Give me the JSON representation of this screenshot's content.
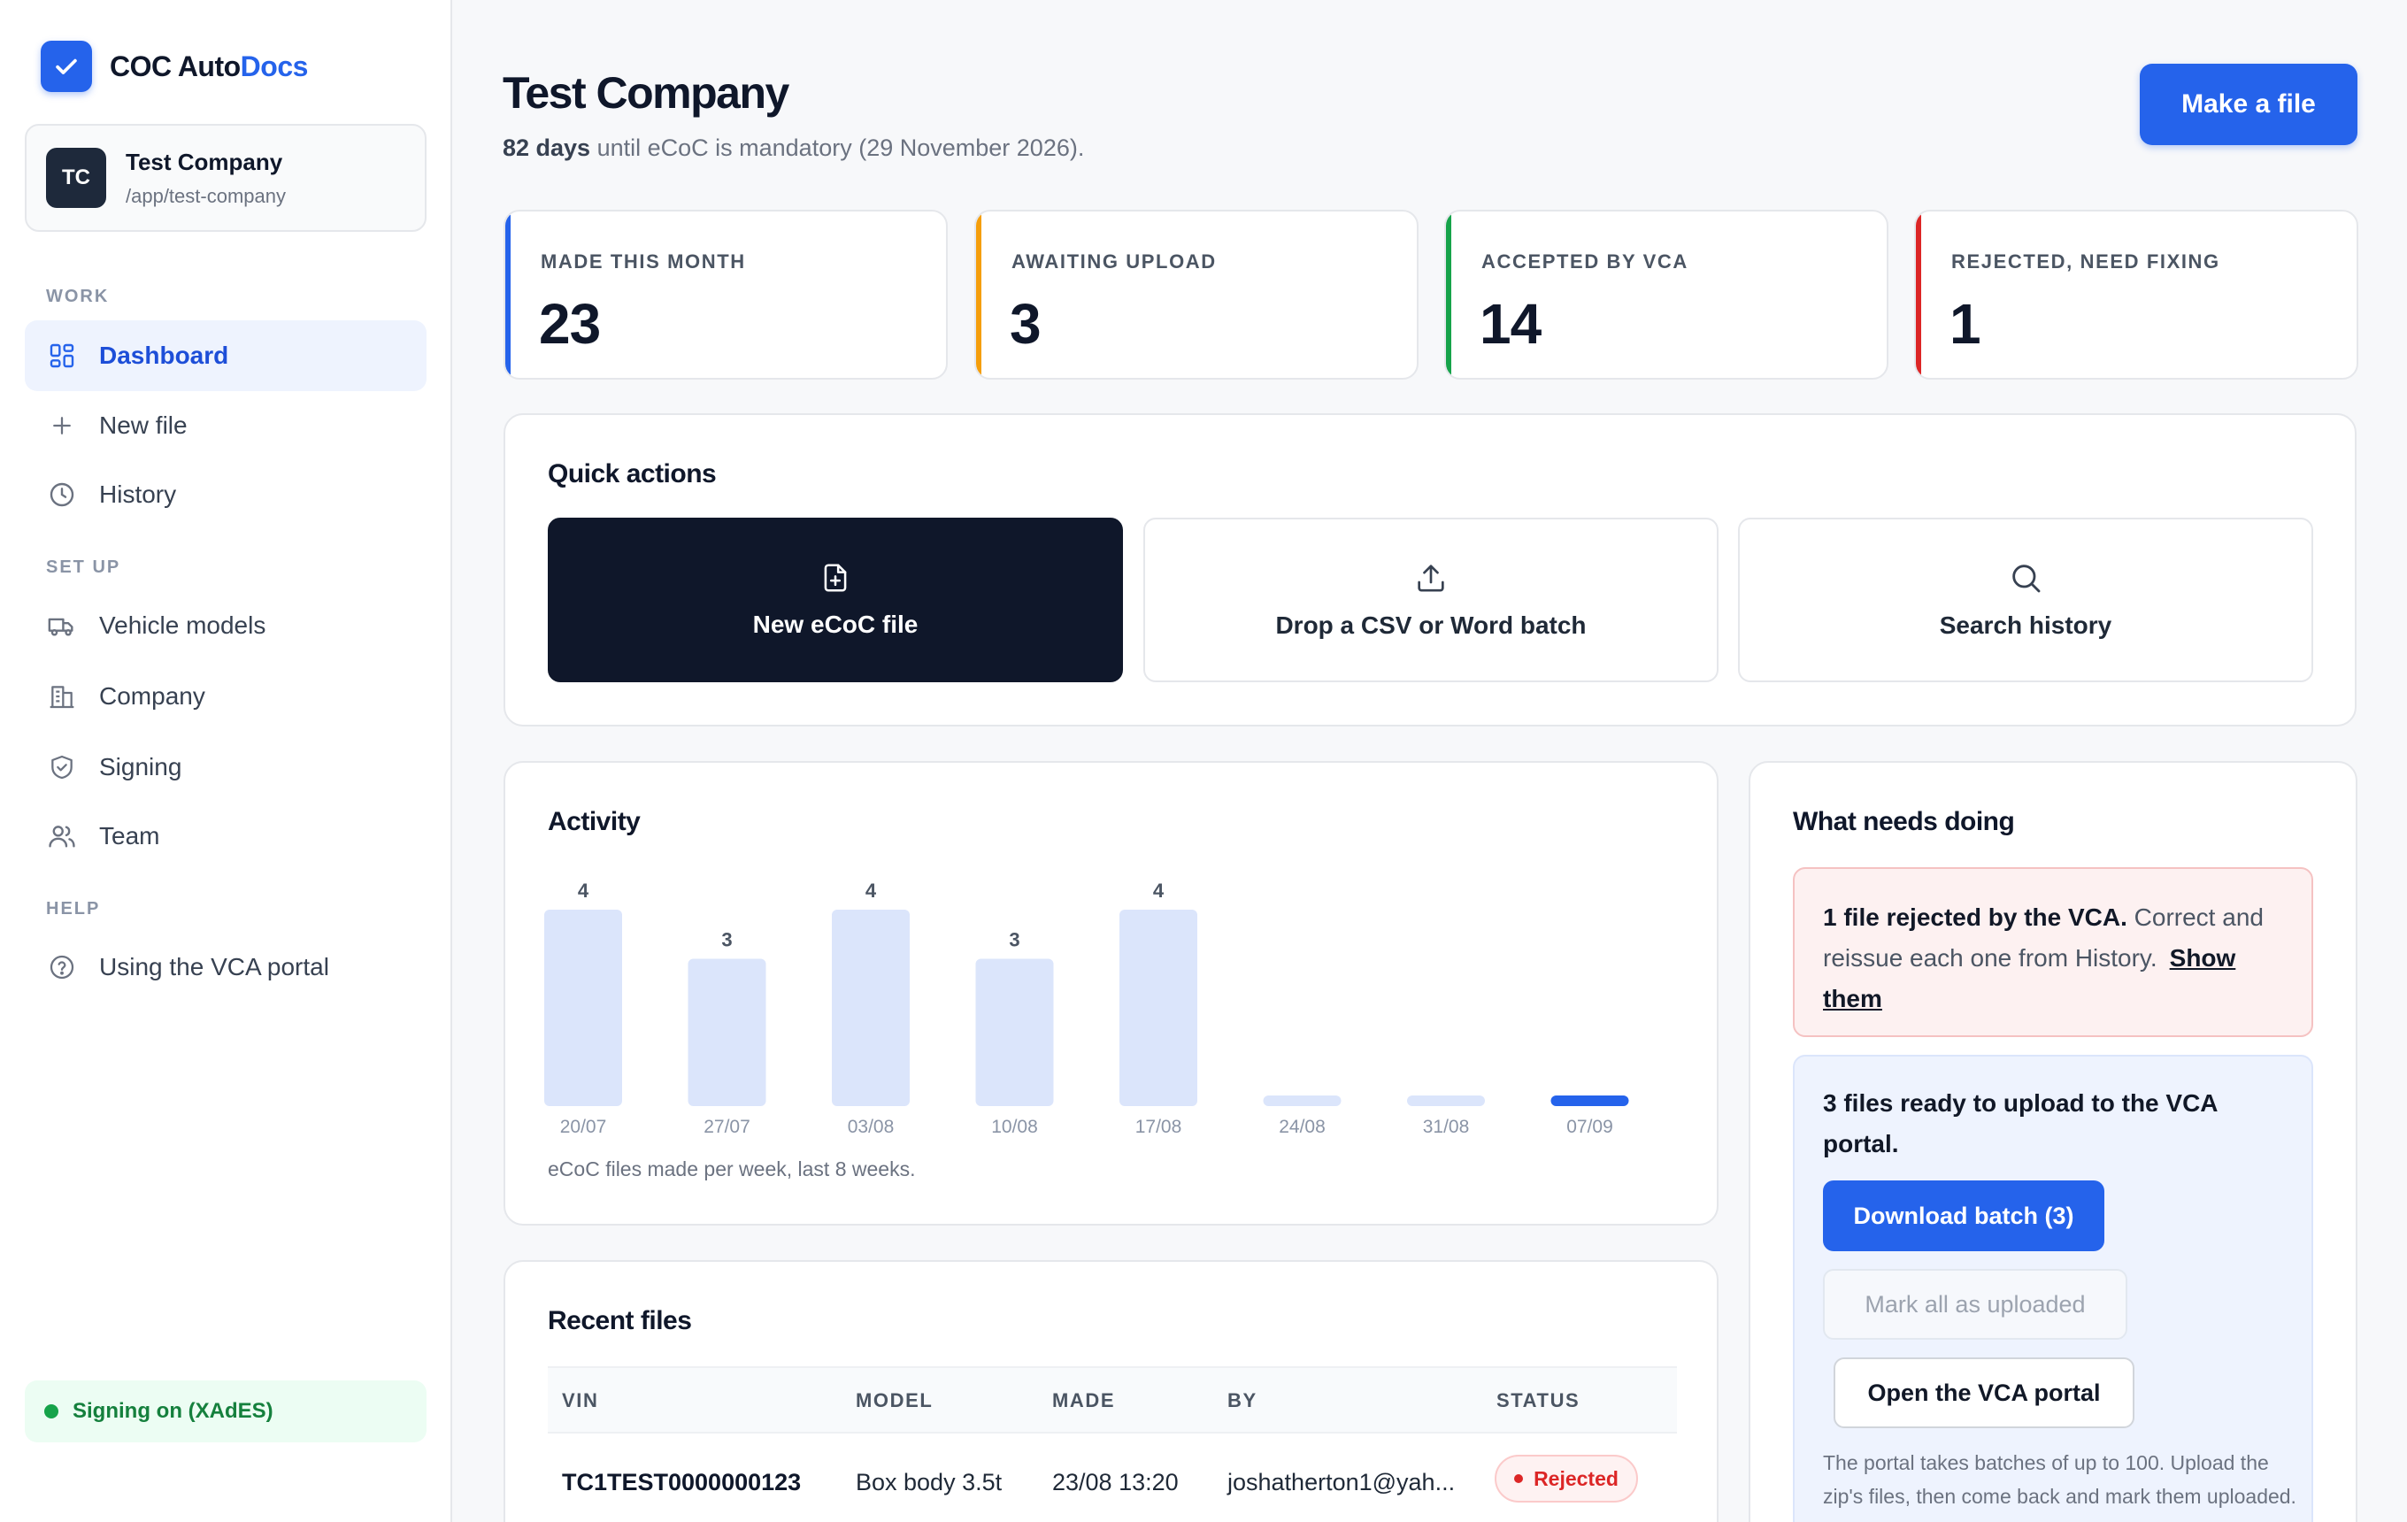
{
  "brand": {
    "name_main": "COC Auto",
    "name_accent": "Docs"
  },
  "company": {
    "initials": "TC",
    "name": "Test Company",
    "path": "/app/test-company"
  },
  "sidebar": {
    "sections": {
      "work": "WORK",
      "setup": "SET UP",
      "help": "HELP"
    },
    "items": {
      "dashboard": "Dashboard",
      "new_file": "New file",
      "history": "History",
      "vehicle_models": "Vehicle models",
      "company": "Company",
      "signing": "Signing",
      "team": "Team",
      "vca_portal": "Using the VCA portal"
    },
    "signing_status": "Signing on (XAdES)"
  },
  "header": {
    "title": "Test Company",
    "days_count": "82 days",
    "days_text": " until eCoC is mandatory (29 November 2026).",
    "make_file_label": "Make a file"
  },
  "stats": [
    {
      "label": "MADE THIS MONTH",
      "value": "23",
      "color": "#2563eb"
    },
    {
      "label": "AWAITING UPLOAD",
      "value": "3",
      "color": "#f59e0b"
    },
    {
      "label": "ACCEPTED BY VCA",
      "value": "14",
      "color": "#16a34a"
    },
    {
      "label": "REJECTED, NEED FIXING",
      "value": "1",
      "color": "#dc2626"
    }
  ],
  "quick_actions": {
    "title": "Quick actions",
    "new_ecoc": "New eCoC file",
    "drop_batch": "Drop a CSV or Word batch",
    "search_history": "Search history"
  },
  "activity": {
    "title": "Activity",
    "note": "eCoC files made per week, last 8 weeks."
  },
  "chart_data": {
    "type": "bar",
    "categories": [
      "20/07",
      "27/07",
      "03/08",
      "10/08",
      "17/08",
      "24/08",
      "31/08",
      "07/09"
    ],
    "values": [
      4,
      3,
      4,
      3,
      4,
      0,
      0,
      0
    ],
    "data_labels": [
      "4",
      "3",
      "4",
      "3",
      "4",
      "",
      "",
      ""
    ],
    "highlight_index": 7,
    "bar_color": "#dbe5fb",
    "highlight_color": "#2563eb",
    "ylim": [
      0,
      4
    ],
    "grid": false
  },
  "needs_doing": {
    "title": "What needs doing",
    "rejected_bold": "1 file rejected by the VCA.",
    "rejected_text": " Correct and reissue each one from History.",
    "rejected_link": "Show them",
    "ready_title": "3 files ready to upload to the VCA portal.",
    "download_label": "Download batch (3)",
    "mark_label": "Mark all as uploaded",
    "open_portal_label": "Open the VCA portal",
    "portal_note": "The portal takes batches of up to 100. Upload the zip's files, then come back and mark them uploaded."
  },
  "recent_files": {
    "title": "Recent files",
    "columns": {
      "vin": "VIN",
      "model": "MODEL",
      "made": "MADE",
      "by": "BY",
      "status": "STATUS"
    },
    "rows": [
      {
        "vin": "TC1TEST0000000123",
        "model": "Box body 3.5t",
        "made": "23/08 13:20",
        "by": "joshatherton1@yah...",
        "status": "Rejected"
      }
    ]
  }
}
